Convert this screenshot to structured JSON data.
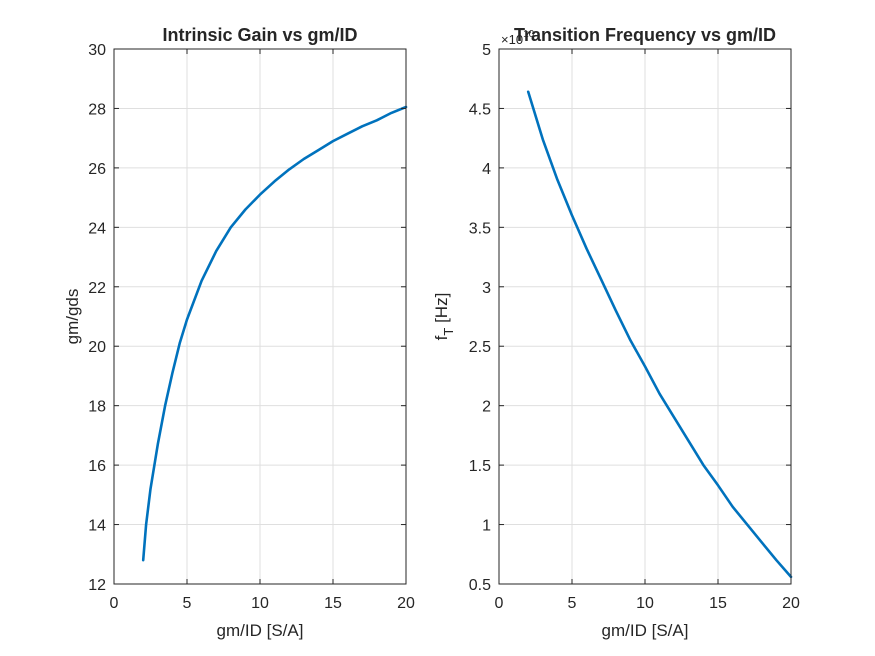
{
  "chart_data": [
    {
      "type": "line",
      "title": "Intrinsic Gain vs gm/ID",
      "xlabel": "gm/ID [S/A]",
      "ylabel": "gm/gds",
      "xlim": [
        0,
        20
      ],
      "ylim": [
        12,
        30
      ],
      "xticks": [
        0,
        5,
        10,
        15,
        20
      ],
      "yticks": [
        12,
        14,
        16,
        18,
        20,
        22,
        24,
        26,
        28,
        30
      ],
      "grid": true,
      "color": "#0072BD",
      "series": [
        {
          "x": [
            2,
            2.2,
            2.5,
            3,
            3.5,
            4,
            4.5,
            5,
            6,
            7,
            8,
            9,
            10,
            11,
            12,
            13,
            14,
            15,
            16,
            17,
            18,
            19,
            20
          ],
          "values": [
            12.8,
            14.0,
            15.2,
            16.7,
            18.0,
            19.1,
            20.1,
            20.9,
            22.2,
            23.2,
            24.0,
            24.6,
            25.1,
            25.55,
            25.95,
            26.3,
            26.6,
            26.9,
            27.15,
            27.4,
            27.6,
            27.85,
            28.05
          ]
        }
      ]
    },
    {
      "type": "line",
      "title": "Transition Frequency vs gm/ID",
      "xlabel": "gm/ID [S/A]",
      "ylabel_main": "f",
      "ylabel_sub": "T",
      "ylabel_unit": " [Hz]",
      "exponent_base": "×10",
      "exponent_power": "10",
      "xlim": [
        0,
        20
      ],
      "ylim": [
        0.5,
        5
      ],
      "xticks": [
        0,
        5,
        10,
        15,
        20
      ],
      "yticks": [
        0.5,
        1,
        1.5,
        2,
        2.5,
        3,
        3.5,
        4,
        4.5,
        5
      ],
      "grid": true,
      "color": "#0072BD",
      "series": [
        {
          "x": [
            2,
            3,
            4,
            5,
            6,
            7,
            8,
            9,
            10,
            11,
            12,
            13,
            14,
            15,
            16,
            17,
            18,
            19,
            20
          ],
          "values": [
            4.64,
            4.24,
            3.9,
            3.6,
            3.32,
            3.06,
            2.8,
            2.55,
            2.33,
            2.1,
            1.9,
            1.7,
            1.5,
            1.33,
            1.15,
            1.0,
            0.85,
            0.7,
            0.56
          ]
        }
      ]
    }
  ]
}
